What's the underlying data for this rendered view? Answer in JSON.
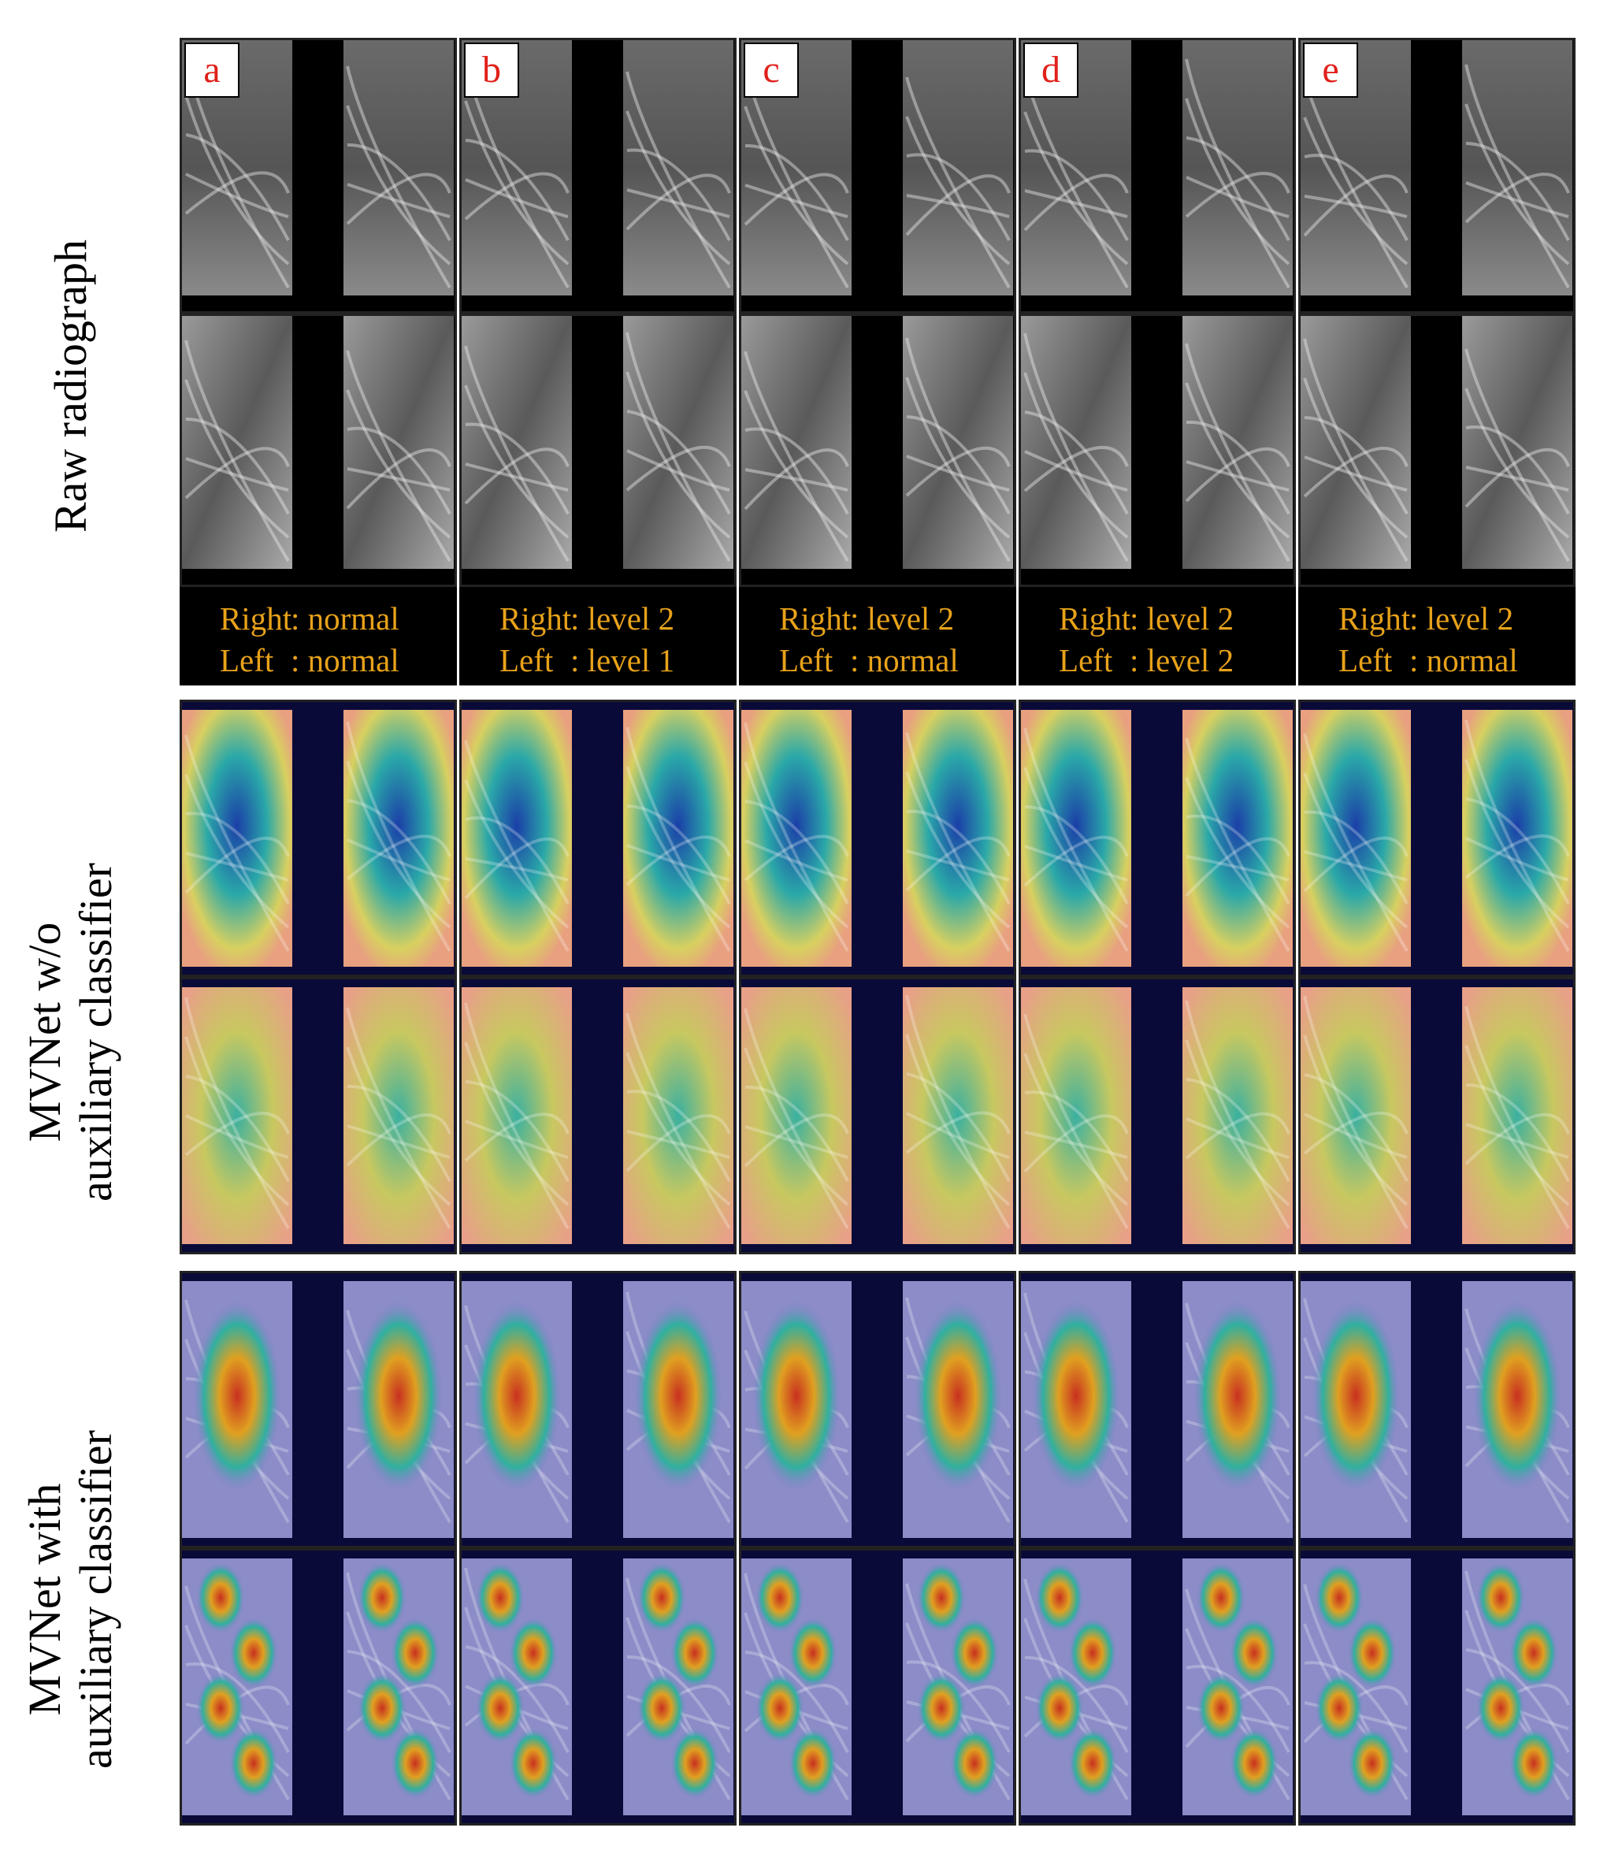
{
  "row_labels": {
    "raw": "Raw radiograph",
    "without_line1": "MVNet w/o",
    "without_line2": "auxiliary classifier",
    "with_line1": "MVNet with",
    "with_line2": "auxiliary classifier"
  },
  "columns": [
    {
      "letter": "a",
      "right_label": "Right",
      "right_value": ": normal",
      "left_label": "Left",
      "left_value": ": normal"
    },
    {
      "letter": "b",
      "right_label": "Right",
      "right_value": ": level 2",
      "left_label": "Left",
      "left_value": ": level 1"
    },
    {
      "letter": "c",
      "right_label": "Right",
      "right_value": ": level 2",
      "left_label": "Left",
      "left_value": ": normal"
    },
    {
      "letter": "d",
      "right_label": "Right",
      "right_value": ": level 2",
      "left_label": "Left",
      "left_value": ": level 2"
    },
    {
      "letter": "e",
      "right_label": "Right",
      "right_value": ": level 2",
      "left_label": "Left",
      "left_value": ": normal"
    }
  ],
  "colors": {
    "label_text": "#e8a21a",
    "letter_text": "#e0201a",
    "background": "#000000"
  }
}
